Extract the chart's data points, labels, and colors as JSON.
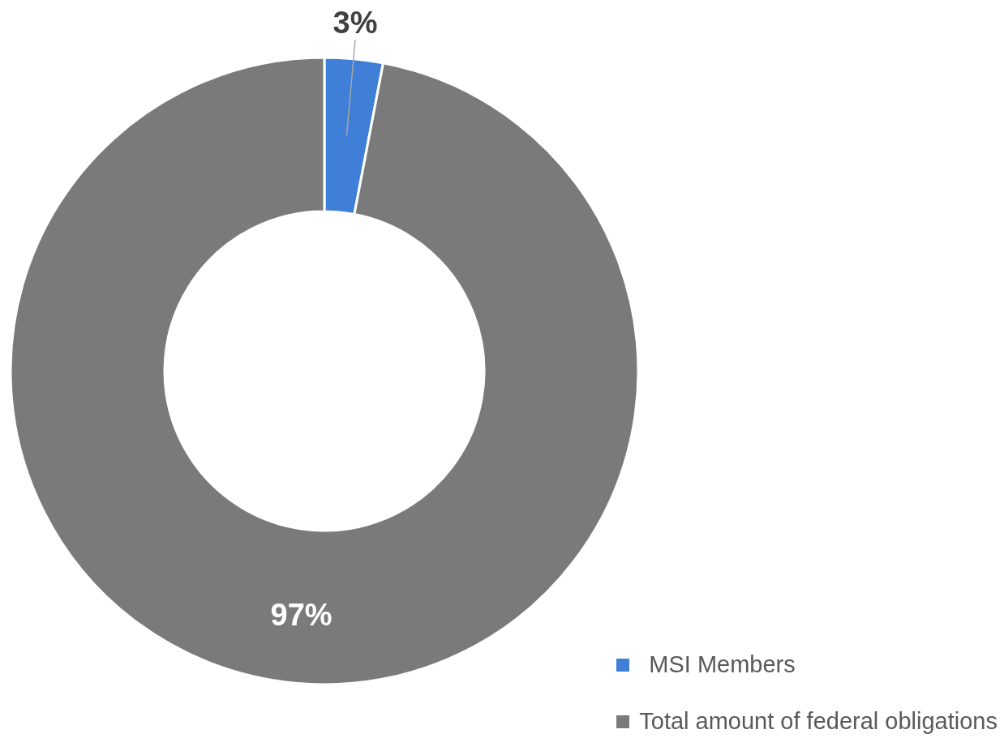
{
  "chart_data": {
    "type": "donut",
    "categories": [
      "MSI Members",
      "Total amount of federal obligations"
    ],
    "values": [
      3,
      97
    ],
    "colors": [
      "#3f7fd8",
      "#7a7a7a"
    ],
    "value_labels": [
      "3%",
      "97%"
    ],
    "legend": "bottom right"
  }
}
